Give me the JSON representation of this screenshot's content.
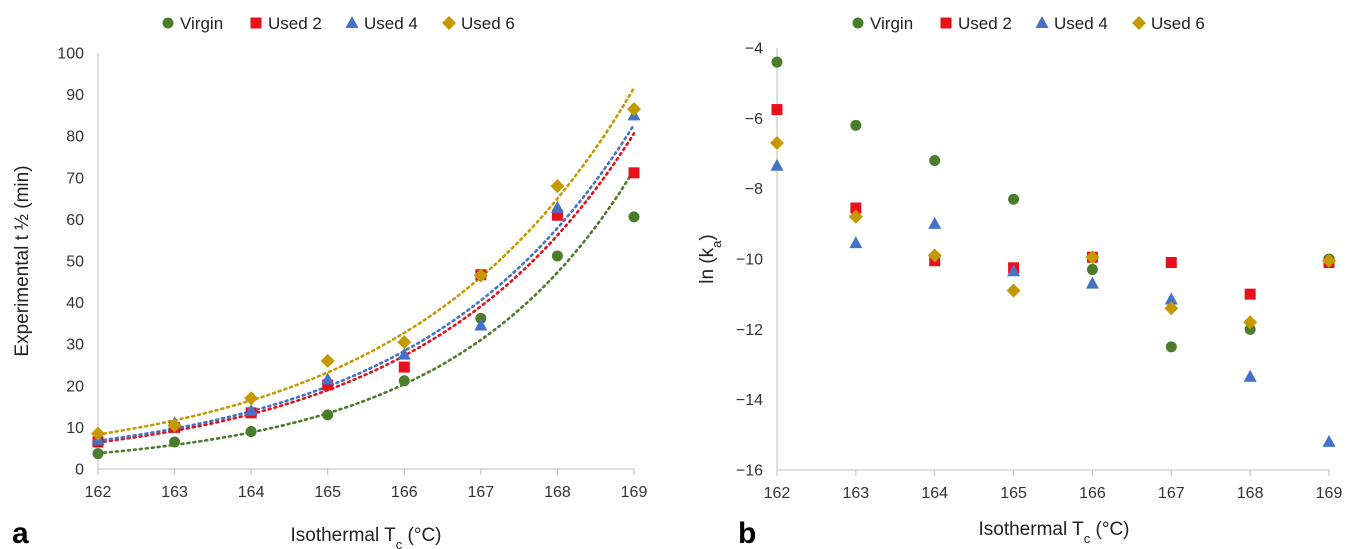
{
  "chart_data": [
    {
      "panel": "a",
      "type": "scatter",
      "title": "",
      "xlabel": "Isothermal T",
      "xlabel_sub": "c",
      "xlabel_suffix": " (°C)",
      "ylabel": "Experimental t ½  (min)",
      "xlim": [
        162,
        169
      ],
      "ylim": [
        0,
        100
      ],
      "xticks": [
        162,
        163,
        164,
        165,
        166,
        167,
        168,
        169
      ],
      "yticks": [
        0,
        10,
        20,
        30,
        40,
        50,
        60,
        70,
        80,
        90,
        100
      ],
      "grid": false,
      "legend": "top",
      "x": [
        162,
        163,
        164,
        165,
        166,
        167,
        168,
        169
      ],
      "series": [
        {
          "name": "Virgin",
          "marker": "circle",
          "color": "#4a7c2b",
          "values": [
            3.7,
            6.5,
            9.0,
            13.0,
            21.2,
            36.2,
            51.2,
            60.6
          ],
          "trend": {
            "kind": "exponential",
            "a": 3.8,
            "b": 0.42,
            "color": "#4a7c2b"
          }
        },
        {
          "name": "Used 2",
          "marker": "square",
          "color": "#e8101a",
          "values": [
            6.5,
            10.0,
            13.5,
            20.2,
            24.5,
            46.7,
            61.0,
            71.2
          ],
          "trend": {
            "kind": "exponential",
            "a": 6.4,
            "b": 0.362,
            "color": "#e8101a"
          }
        },
        {
          "name": "Used 4",
          "marker": "triangle",
          "color": "#4472c4",
          "values": [
            7.0,
            11.0,
            14.0,
            21.5,
            27.5,
            34.5,
            62.8,
            85.0
          ],
          "trend": {
            "kind": "exponential",
            "a": 6.8,
            "b": 0.357,
            "color": "#4472c4"
          }
        },
        {
          "name": "Used 6",
          "marker": "diamond",
          "color": "#c49a00",
          "values": [
            8.5,
            10.5,
            17.0,
            26.0,
            30.5,
            46.5,
            68.0,
            86.5
          ],
          "trend": {
            "kind": "exponential",
            "a": 8.3,
            "b": 0.343,
            "color": "#c49a00"
          }
        }
      ]
    },
    {
      "panel": "b",
      "type": "scatter",
      "title": "",
      "xlabel": "Isothermal T",
      "xlabel_sub": "c",
      "xlabel_suffix": " (°C)",
      "ylabel": "ln (k",
      "ylabel_sub": "a",
      "ylabel_suffix": ")",
      "xlim": [
        162,
        169
      ],
      "ylim": [
        -16,
        -4
      ],
      "xticks": [
        162,
        163,
        164,
        165,
        166,
        167,
        168,
        169
      ],
      "yticks": [
        -16,
        -14,
        -12,
        -10,
        -8,
        -6,
        -4
      ],
      "ytick_labels": [
        "−16",
        "−14",
        "−12",
        "−10",
        "−8",
        "−6",
        "−4"
      ],
      "grid": false,
      "legend": "top",
      "x": [
        162,
        163,
        164,
        165,
        166,
        167,
        168,
        169
      ],
      "series": [
        {
          "name": "Virgin",
          "marker": "circle",
          "color": "#4a7c2b",
          "values": [
            -4.4,
            -6.2,
            -7.2,
            -8.3,
            -10.3,
            -12.5,
            -12.0,
            -10.0
          ]
        },
        {
          "name": "Used 2",
          "marker": "square",
          "color": "#e8101a",
          "values": [
            -5.75,
            -8.55,
            -10.05,
            -10.25,
            -9.95,
            -10.1,
            -11.0,
            -10.1
          ]
        },
        {
          "name": "Used 4",
          "marker": "triangle",
          "color": "#4472c4",
          "values": [
            -7.35,
            -9.55,
            -9.0,
            -10.35,
            -10.7,
            -11.15,
            -13.35,
            -15.2
          ]
        },
        {
          "name": "Used 6",
          "marker": "diamond",
          "color": "#c49a00",
          "values": [
            -6.7,
            -8.8,
            -9.9,
            -10.9,
            -9.95,
            -11.4,
            -11.8,
            -10.05
          ]
        }
      ]
    }
  ]
}
